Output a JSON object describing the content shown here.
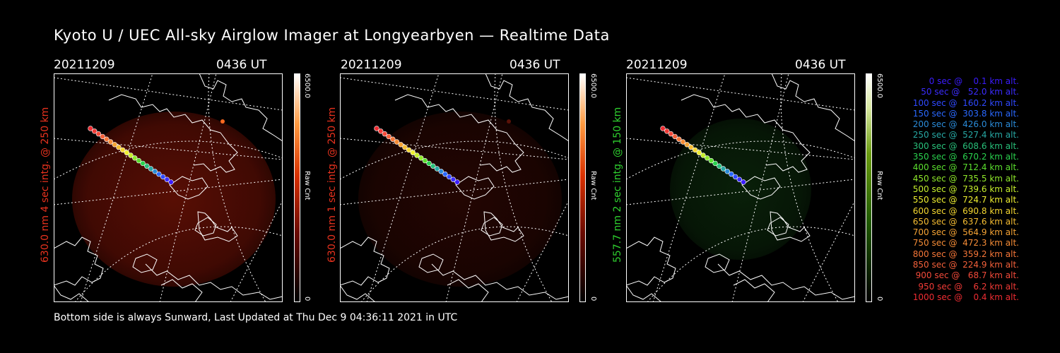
{
  "title": "Kyoto U / UEC All-sky Airglow Imager at Longyearbyen — Realtime Data",
  "footer": "Bottom side is always Sunward, Last Updated at Thu Dec  9 04:36:11 2021 in UTC",
  "panels": [
    {
      "date": "20211209",
      "time": "0436 UT",
      "ylabel": "630.0 nm 4 sec intg. @ 250 km",
      "ylabel_color": "#e8321e",
      "cb_max": "6500.0",
      "cb_min": "0",
      "cb_unit": "Raw Cnt",
      "tint": "red",
      "bright": 0.55
    },
    {
      "date": "20211209",
      "time": "0436 UT",
      "ylabel": "630.0 nm 1 sec intg. @ 250 km",
      "ylabel_color": "#e8321e",
      "cb_max": "6500.0",
      "cb_min": "0",
      "cb_unit": "Raw Cnt",
      "tint": "red",
      "bright": 0.22
    },
    {
      "date": "20211209",
      "time": "0436 UT",
      "ylabel": "557.7 nm 2 sec intg. @ 150 km",
      "ylabel_color": "#2fd12f",
      "cb_max": "6500.0",
      "cb_min": "0",
      "cb_unit": "Raw Cnt",
      "tint": "green",
      "bright": 0.3
    }
  ],
  "legend": [
    {
      "text": "   0 sec @    0.1 km alt.",
      "color": "#3b1cff"
    },
    {
      "text": "  50 sec @   52.0 km alt.",
      "color": "#3b2cff"
    },
    {
      "text": " 100 sec @  160.2 km alt.",
      "color": "#2f49ff"
    },
    {
      "text": " 150 sec @  303.8 km alt.",
      "color": "#2a69ff"
    },
    {
      "text": " 200 sec @  426.0 km alt.",
      "color": "#2a8bd8"
    },
    {
      "text": " 250 sec @  527.4 km alt.",
      "color": "#27a8a4"
    },
    {
      "text": " 300 sec @  608.6 km alt.",
      "color": "#28c07a"
    },
    {
      "text": " 350 sec @  670.2 km alt.",
      "color": "#2ad24e"
    },
    {
      "text": " 400 sec @  712.4 km alt.",
      "color": "#5bdf2e"
    },
    {
      "text": " 450 sec @  735.5 km alt.",
      "color": "#8fe82a"
    },
    {
      "text": " 500 sec @  739.6 km alt.",
      "color": "#c5ee2c"
    },
    {
      "text": " 550 sec @  724.7 km alt.",
      "color": "#eeee30"
    },
    {
      "text": " 600 sec @  690.8 km alt.",
      "color": "#f4d630"
    },
    {
      "text": " 650 sec @  637.6 km alt.",
      "color": "#f5bc32"
    },
    {
      "text": " 700 sec @  564.9 km alt.",
      "color": "#f5a334"
    },
    {
      "text": " 750 sec @  472.3 km alt.",
      "color": "#f58c36"
    },
    {
      "text": " 800 sec @  359.2 km alt.",
      "color": "#f57638"
    },
    {
      "text": " 850 sec @  224.9 km alt.",
      "color": "#f3603a"
    },
    {
      "text": " 900 sec @   68.7 km alt.",
      "color": "#f24a3a"
    },
    {
      "text": " 950 sec @    6.2 km alt.",
      "color": "#f03a36"
    },
    {
      "text": "1000 sec @    0.4 km alt.",
      "color": "#ee2c32"
    }
  ]
}
